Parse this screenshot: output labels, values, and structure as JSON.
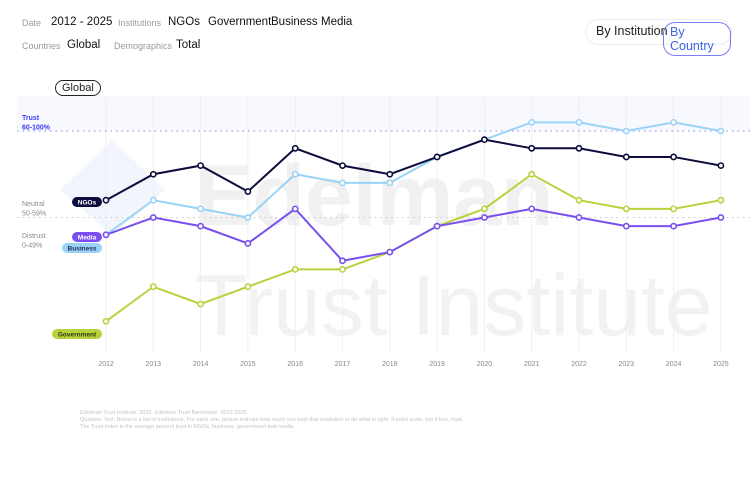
{
  "filters": {
    "date_label": "Date",
    "date_value": "2012 - 2025",
    "institutions_label": "Institutions",
    "institutions": [
      "NGOs",
      "Government",
      "Business",
      "Media"
    ],
    "countries_label": "Countries",
    "countries_value": "Global",
    "demographics_label": "Demographics",
    "demographics_value": "Total"
  },
  "view_toggle": {
    "by_institution": "By Institution",
    "by_country": "By Country",
    "active": "By Country"
  },
  "country_pill": "Global",
  "watermark": "Edelman Trust Institute",
  "chart_data": {
    "type": "line",
    "x": [
      2012,
      2013,
      2014,
      2015,
      2016,
      2017,
      2018,
      2019,
      2020,
      2021,
      2022,
      2023,
      2024,
      2025
    ],
    "zones": [
      {
        "label": "Trust",
        "range": "60-100%",
        "color": "#3b3bf5"
      },
      {
        "label": "Neutral",
        "range": "50-59%",
        "color": "#8a8a8a"
      },
      {
        "label": "Distrust",
        "range": "0-49%",
        "color": "#8a8a8a"
      }
    ],
    "thresholds": [
      60,
      50
    ],
    "ylim": [
      34,
      64
    ],
    "grid": "vertical",
    "series": [
      {
        "name": "NGOs",
        "color": "#0d0d3d",
        "values": [
          52,
          55,
          56,
          53,
          58,
          56,
          55,
          57,
          59,
          58,
          58,
          57,
          57,
          56
        ]
      },
      {
        "name": "Business",
        "color": "#9ad3f7",
        "values": [
          48,
          52,
          51,
          50,
          55,
          54,
          54,
          57,
          59,
          61,
          61,
          60,
          61,
          60
        ]
      },
      {
        "name": "Media",
        "color": "#7a4ff0",
        "values": [
          48,
          50,
          49,
          47,
          51,
          45,
          46,
          49,
          50,
          51,
          50,
          49,
          49,
          50
        ]
      },
      {
        "name": "Government",
        "color": "#b8d23e",
        "values": [
          38,
          42,
          40,
          42,
          44,
          44,
          46,
          49,
          51,
          55,
          52,
          51,
          51,
          52
        ]
      }
    ]
  },
  "footnotes": [
    "Edelman Trust Institute. 2025. Edelman Trust Barometer: 2012-2025.",
    "Question Text: Below is a list of institutions. For each one, please indicate how much you trust that institution to do what is right. 9-point scale; top 4 box, trust.",
    "The Trust Index is the average percent trust in NGOs, business, government and media."
  ]
}
